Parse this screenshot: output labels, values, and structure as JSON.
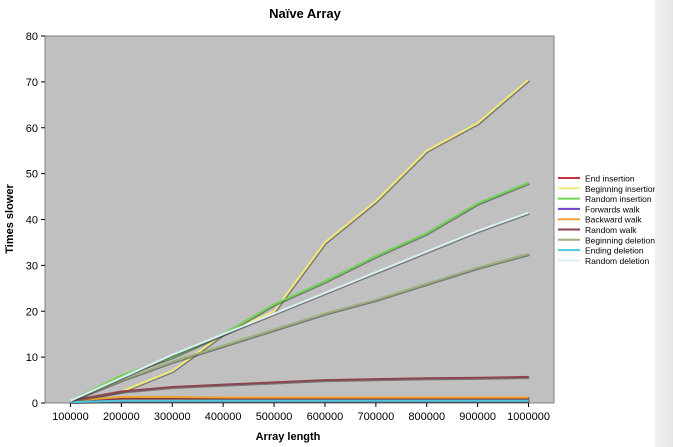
{
  "chart_data": {
    "type": "line",
    "title": "Naïve Array",
    "xlabel": "Array length",
    "ylabel": "Times slower",
    "x": [
      100000,
      200000,
      300000,
      400000,
      500000,
      600000,
      700000,
      800000,
      900000,
      1000000
    ],
    "xlim": [
      100000,
      1000000
    ],
    "ylim": [
      0,
      80
    ],
    "yticks": [
      0,
      10,
      20,
      30,
      40,
      50,
      60,
      70,
      80
    ],
    "grid": false,
    "plot_background": "#c0c0c0",
    "legend_position": "right",
    "series": [
      {
        "name": "End insertion",
        "color": "#c8323c",
        "values": [
          0.5,
          1,
          1,
          1,
          1,
          1,
          1,
          1,
          1,
          1
        ]
      },
      {
        "name": "Beginning insertion",
        "color": "#f0e878",
        "values": [
          0.5,
          2.5,
          7,
          15,
          20,
          35,
          44,
          55,
          61,
          70.5
        ]
      },
      {
        "name": "Random insertion",
        "color": "#6ed450",
        "values": [
          0.5,
          6,
          10,
          15,
          21.5,
          26.5,
          32,
          37,
          43.5,
          48
        ]
      },
      {
        "name": "Forwards walk",
        "color": "#7040d0",
        "values": [
          0.3,
          0.4,
          0.4,
          0.4,
          0.4,
          0.4,
          0.4,
          0.4,
          0.4,
          0.4
        ]
      },
      {
        "name": "Backward walk",
        "color": "#f0a030",
        "values": [
          0.5,
          1.3,
          1.3,
          1.2,
          1.2,
          1.2,
          1.2,
          1.2,
          1.2,
          1.2
        ]
      },
      {
        "name": "Random walk",
        "color": "#8c4450",
        "values": [
          0.5,
          2.5,
          3.5,
          4,
          4.5,
          5,
          5.2,
          5.4,
          5.5,
          5.7
        ]
      },
      {
        "name": "Beginning deletion",
        "color": "#9ab07a",
        "values": [
          0.5,
          5,
          9,
          12.5,
          16,
          19.5,
          22.5,
          26,
          29.5,
          32.5
        ]
      },
      {
        "name": "Ending deletion",
        "color": "#4cc8e0",
        "values": [
          0.2,
          0.5,
          0.5,
          0.5,
          0.5,
          0.5,
          0.5,
          0.5,
          0.5,
          0.5
        ]
      },
      {
        "name": "Random deletion",
        "color": "#d8f0f4",
        "values": [
          0.5,
          5.5,
          10.5,
          15,
          19.5,
          24,
          28.5,
          33,
          37.5,
          41.5
        ]
      }
    ]
  }
}
